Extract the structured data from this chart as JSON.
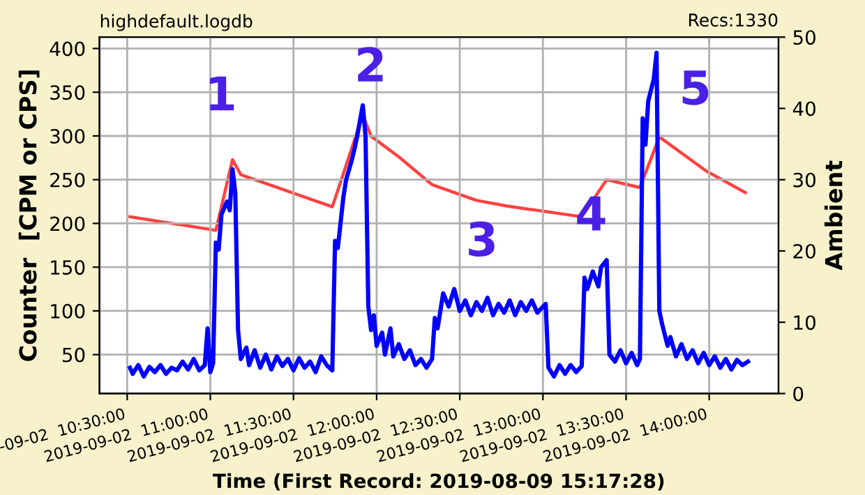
{
  "chart_data": {
    "type": "line",
    "title": "highdefault.logdb",
    "xlabel": "Time (First Record: 2019-08-09 15:17:28)",
    "ylabel": "Counter  [CPM or CPS]",
    "y2label": "Ambient",
    "annotations": [
      "Recs:1330",
      {
        "text": "1",
        "x": "2019-09-02T11:08",
        "y": 262
      },
      {
        "text": "2",
        "x": "2019-09-02T11:55",
        "y": 335
      },
      {
        "text": "3",
        "x": "2019-09-02T12:38",
        "y": 100
      },
      {
        "text": "4",
        "x": "2019-09-02T13:23",
        "y": 158
      },
      {
        "text": "5",
        "x": "2019-09-02T13:41",
        "y": 395
      }
    ],
    "xlim": [
      "2019-09-02T10:20",
      "2019-09-02T14:25"
    ],
    "xticks": [
      {
        "value": "2019-09-02T10:30",
        "label": "-09-02  10:30:00"
      },
      {
        "value": "2019-09-02T11:00",
        "label": "2019-09-02  11:00:00"
      },
      {
        "value": "2019-09-02T11:30",
        "label": "2019-09-02  11:30:00"
      },
      {
        "value": "2019-09-02T12:00",
        "label": "2019-09-02  12:00:00"
      },
      {
        "value": "2019-09-02T12:30",
        "label": "2019-09-02  12:30:00"
      },
      {
        "value": "2019-09-02T13:00",
        "label": "2019-09-02  13:00:00"
      },
      {
        "value": "2019-09-02T13:30",
        "label": "2019-09-02  13:30:00"
      },
      {
        "value": "2019-09-02T14:00",
        "label": "2019-09-02  14:00:00"
      }
    ],
    "ylim": [
      5.5,
      413
    ],
    "yticks": [
      50,
      100,
      150,
      200,
      250,
      300,
      350,
      400
    ],
    "y2lim": [
      0,
      50
    ],
    "y2ticks": [
      0,
      10,
      20,
      30,
      40,
      50
    ],
    "grid": true,
    "series": [
      {
        "color": "#0000ff",
        "x": [
          "2019-09-02T10:31",
          "2019-09-02T10:32",
          "2019-09-02T10:34",
          "2019-09-02T10:36",
          "2019-09-02T10:38",
          "2019-09-02T10:40",
          "2019-09-02T10:42",
          "2019-09-02T10:44",
          "2019-09-02T10:46",
          "2019-09-02T10:48",
          "2019-09-02T10:50",
          "2019-09-02T10:52",
          "2019-09-02T10:54",
          "2019-09-02T10:56",
          "2019-09-02T10:58",
          "2019-09-02T10:59",
          "2019-09-02T11:00",
          "2019-09-02T11:01",
          "2019-09-02T11:02",
          "2019-09-02T11:03",
          "2019-09-02T11:04",
          "2019-09-02T11:06",
          "2019-09-02T11:07",
          "2019-09-02T11:08",
          "2019-09-02T11:09",
          "2019-09-02T11:10",
          "2019-09-02T11:11",
          "2019-09-02T11:13",
          "2019-09-02T11:14",
          "2019-09-02T11:16",
          "2019-09-02T11:18",
          "2019-09-02T11:20",
          "2019-09-02T11:22",
          "2019-09-02T11:24",
          "2019-09-02T11:26",
          "2019-09-02T11:28",
          "2019-09-02T11:30",
          "2019-09-02T11:32",
          "2019-09-02T11:34",
          "2019-09-02T11:36",
          "2019-09-02T11:38",
          "2019-09-02T11:40",
          "2019-09-02T11:42",
          "2019-09-02T11:44",
          "2019-09-02T11:45",
          "2019-09-02T11:46",
          "2019-09-02T11:48",
          "2019-09-02T11:49",
          "2019-09-02T11:51",
          "2019-09-02T11:52",
          "2019-09-02T11:53",
          "2019-09-02T11:55",
          "2019-09-02T11:56",
          "2019-09-02T11:57",
          "2019-09-02T11:58",
          "2019-09-02T11:59",
          "2019-09-02T12:00",
          "2019-09-02T12:02",
          "2019-09-02T12:03",
          "2019-09-02T12:05",
          "2019-09-02T12:06",
          "2019-09-02T12:08",
          "2019-09-02T12:10",
          "2019-09-02T12:12",
          "2019-09-02T12:14",
          "2019-09-02T12:16",
          "2019-09-02T12:18",
          "2019-09-02T12:20",
          "2019-09-02T12:21",
          "2019-09-02T12:22",
          "2019-09-02T12:24",
          "2019-09-02T12:26",
          "2019-09-02T12:28",
          "2019-09-02T12:30",
          "2019-09-02T12:32",
          "2019-09-02T12:34",
          "2019-09-02T12:36",
          "2019-09-02T12:38",
          "2019-09-02T12:40",
          "2019-09-02T12:42",
          "2019-09-02T12:44",
          "2019-09-02T12:46",
          "2019-09-02T12:48",
          "2019-09-02T12:50",
          "2019-09-02T12:52",
          "2019-09-02T12:54",
          "2019-09-02T12:56",
          "2019-09-02T12:58",
          "2019-09-02T13:01",
          "2019-09-02T13:02",
          "2019-09-02T13:04",
          "2019-09-02T13:06",
          "2019-09-02T13:08",
          "2019-09-02T13:10",
          "2019-09-02T13:12",
          "2019-09-02T13:14",
          "2019-09-02T13:15",
          "2019-09-02T13:16",
          "2019-09-02T13:18",
          "2019-09-02T13:20",
          "2019-09-02T13:21",
          "2019-09-02T13:23",
          "2019-09-02T13:24",
          "2019-09-02T13:26",
          "2019-09-02T13:28",
          "2019-09-02T13:30",
          "2019-09-02T13:32",
          "2019-09-02T13:34",
          "2019-09-02T13:35",
          "2019-09-02T13:36",
          "2019-09-02T13:37",
          "2019-09-02T13:38",
          "2019-09-02T13:40",
          "2019-09-02T13:41",
          "2019-09-02T13:42",
          "2019-09-02T13:43",
          "2019-09-02T13:45",
          "2019-09-02T13:46",
          "2019-09-02T13:48",
          "2019-09-02T13:50",
          "2019-09-02T13:52",
          "2019-09-02T13:54",
          "2019-09-02T13:56",
          "2019-09-02T13:58",
          "2019-09-02T14:00",
          "2019-09-02T14:02",
          "2019-09-02T14:04",
          "2019-09-02T14:06",
          "2019-09-02T14:08",
          "2019-09-02T14:10",
          "2019-09-02T14:12",
          "2019-09-02T14:14"
        ],
        "values": [
          35,
          28,
          38,
          25,
          36,
          30,
          38,
          28,
          35,
          32,
          42,
          33,
          45,
          32,
          38,
          80,
          30,
          40,
          178,
          170,
          210,
          225,
          215,
          262,
          235,
          78,
          45,
          58,
          38,
          55,
          35,
          50,
          33,
          48,
          37,
          45,
          32,
          46,
          35,
          42,
          30,
          48,
          38,
          32,
          180,
          172,
          230,
          250,
          272,
          285,
          300,
          335,
          300,
          105,
          78,
          95,
          60,
          75,
          50,
          80,
          48,
          62,
          45,
          55,
          38,
          45,
          35,
          45,
          92,
          80,
          120,
          105,
          125,
          100,
          112,
          95,
          110,
          100,
          115,
          95,
          108,
          98,
          112,
          95,
          110,
          100,
          112,
          98,
          108,
          35,
          25,
          38,
          28,
          38,
          30,
          37,
          138,
          125,
          145,
          128,
          150,
          158,
          50,
          42,
          55,
          40,
          52,
          38,
          45,
          320,
          290,
          340,
          365,
          395,
          100,
          85,
          60,
          70,
          48,
          62,
          45,
          55,
          40,
          52,
          38,
          48,
          35,
          45,
          33,
          44,
          38,
          42
        ]
      },
      {
        "color": "#ff2020",
        "axis": "y2",
        "x": [
          "2019-09-02T10:31",
          "2019-09-02T11:02",
          "2019-09-02T11:08",
          "2019-09-02T11:11",
          "2019-09-02T11:44",
          "2019-09-02T11:46",
          "2019-09-02T11:55",
          "2019-09-02T11:58",
          "2019-09-02T12:08",
          "2019-09-02T12:20",
          "2019-09-02T12:36",
          "2019-09-02T12:47",
          "2019-09-02T13:14",
          "2019-09-02T13:23",
          "2019-09-02T13:35",
          "2019-09-02T13:42",
          "2019-09-02T13:59",
          "2019-09-02T14:13"
        ],
        "values": [
          24.8,
          22.9,
          32.8,
          30.7,
          26.2,
          28.5,
          39.1,
          36.1,
          33.2,
          29.3,
          27.1,
          26.3,
          24.8,
          30.0,
          28.9,
          36.0,
          31.2,
          28.2
        ]
      }
    ]
  }
}
